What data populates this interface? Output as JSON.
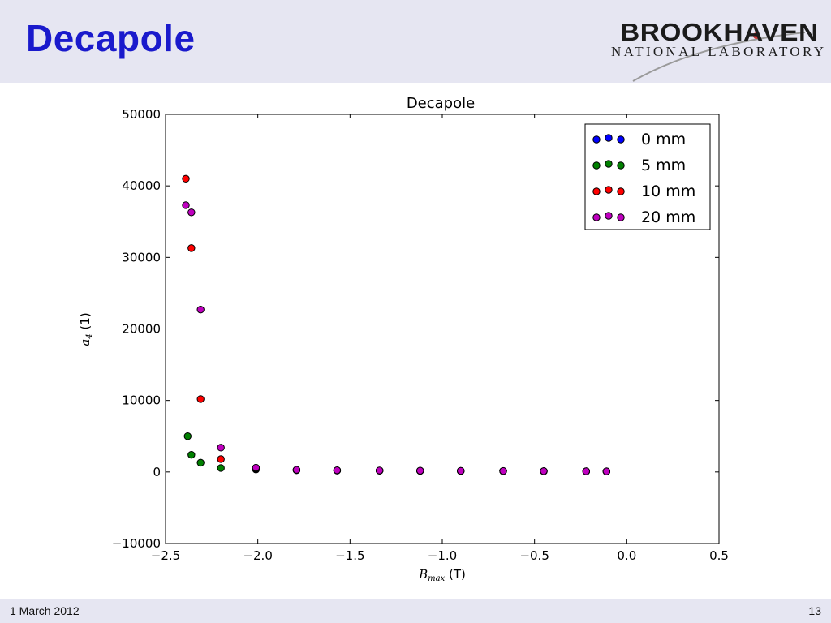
{
  "slide": {
    "title": "Decapole",
    "footer_date": "1 March 2012",
    "page_number": "13"
  },
  "logo": {
    "name": "BROOKHAVEN",
    "subtitle": "NATIONAL LABORATORY"
  },
  "colors": {
    "title_blue": "#1a1acc",
    "header_band": "#e6e6f2"
  },
  "chart_data": {
    "type": "scatter",
    "title": "Decapole",
    "xlabel": "B_max (T)",
    "ylabel": "a_4 (1)",
    "xlim": [
      -2.5,
      0.5
    ],
    "ylim": [
      -10000,
      50000
    ],
    "x_ticks": [
      -2.5,
      -2.0,
      -1.5,
      -1.0,
      -0.5,
      0.0,
      0.5
    ],
    "x_tick_labels": [
      "−2.5",
      "−2.0",
      "−1.5",
      "−1.0",
      "−0.5",
      "0.0",
      "0.5"
    ],
    "y_ticks": [
      -10000,
      0,
      10000,
      20000,
      30000,
      40000,
      50000
    ],
    "y_tick_labels": [
      "−10000",
      "0",
      "10000",
      "20000",
      "30000",
      "40000",
      "50000"
    ],
    "grid": false,
    "legend_position": "top-right",
    "series": [
      {
        "name": "0 mm",
        "color": "#0000ff",
        "x": [
          -2.01,
          -1.79,
          -1.57,
          -1.34,
          -1.12,
          -0.9,
          -0.67,
          -0.45,
          -0.22,
          -0.11
        ],
        "y": [
          350,
          250,
          200,
          180,
          150,
          130,
          110,
          100,
          90,
          80
        ]
      },
      {
        "name": "5 mm",
        "color": "#008000",
        "x": [
          -2.38,
          -2.36,
          -2.31,
          -2.2,
          -2.01,
          -1.79,
          -1.57,
          -1.34,
          -1.12,
          -0.9,
          -0.67,
          -0.45,
          -0.22,
          -0.11
        ],
        "y": [
          5000,
          2400,
          1300,
          550,
          400,
          270,
          210,
          190,
          160,
          140,
          120,
          100,
          90,
          80
        ]
      },
      {
        "name": "10 mm",
        "color": "#ff0000",
        "x": [
          -2.39,
          -2.36,
          -2.31,
          -2.2,
          -2.01,
          -1.79,
          -1.57,
          -1.34,
          -1.12,
          -0.9,
          -0.67,
          -0.45,
          -0.22,
          -0.11
        ],
        "y": [
          41000,
          31300,
          10200,
          1800,
          500,
          280,
          220,
          200,
          170,
          150,
          130,
          110,
          95,
          85
        ]
      },
      {
        "name": "20 mm",
        "color": "#bf00bf",
        "x": [
          -2.39,
          -2.36,
          -2.31,
          -2.2,
          -2.01,
          -1.79,
          -1.57,
          -1.34,
          -1.12,
          -0.9,
          -0.67,
          -0.45,
          -0.22,
          -0.11
        ],
        "y": [
          37300,
          36300,
          22700,
          3400,
          600,
          300,
          240,
          210,
          180,
          160,
          140,
          120,
          100,
          90
        ]
      }
    ]
  }
}
